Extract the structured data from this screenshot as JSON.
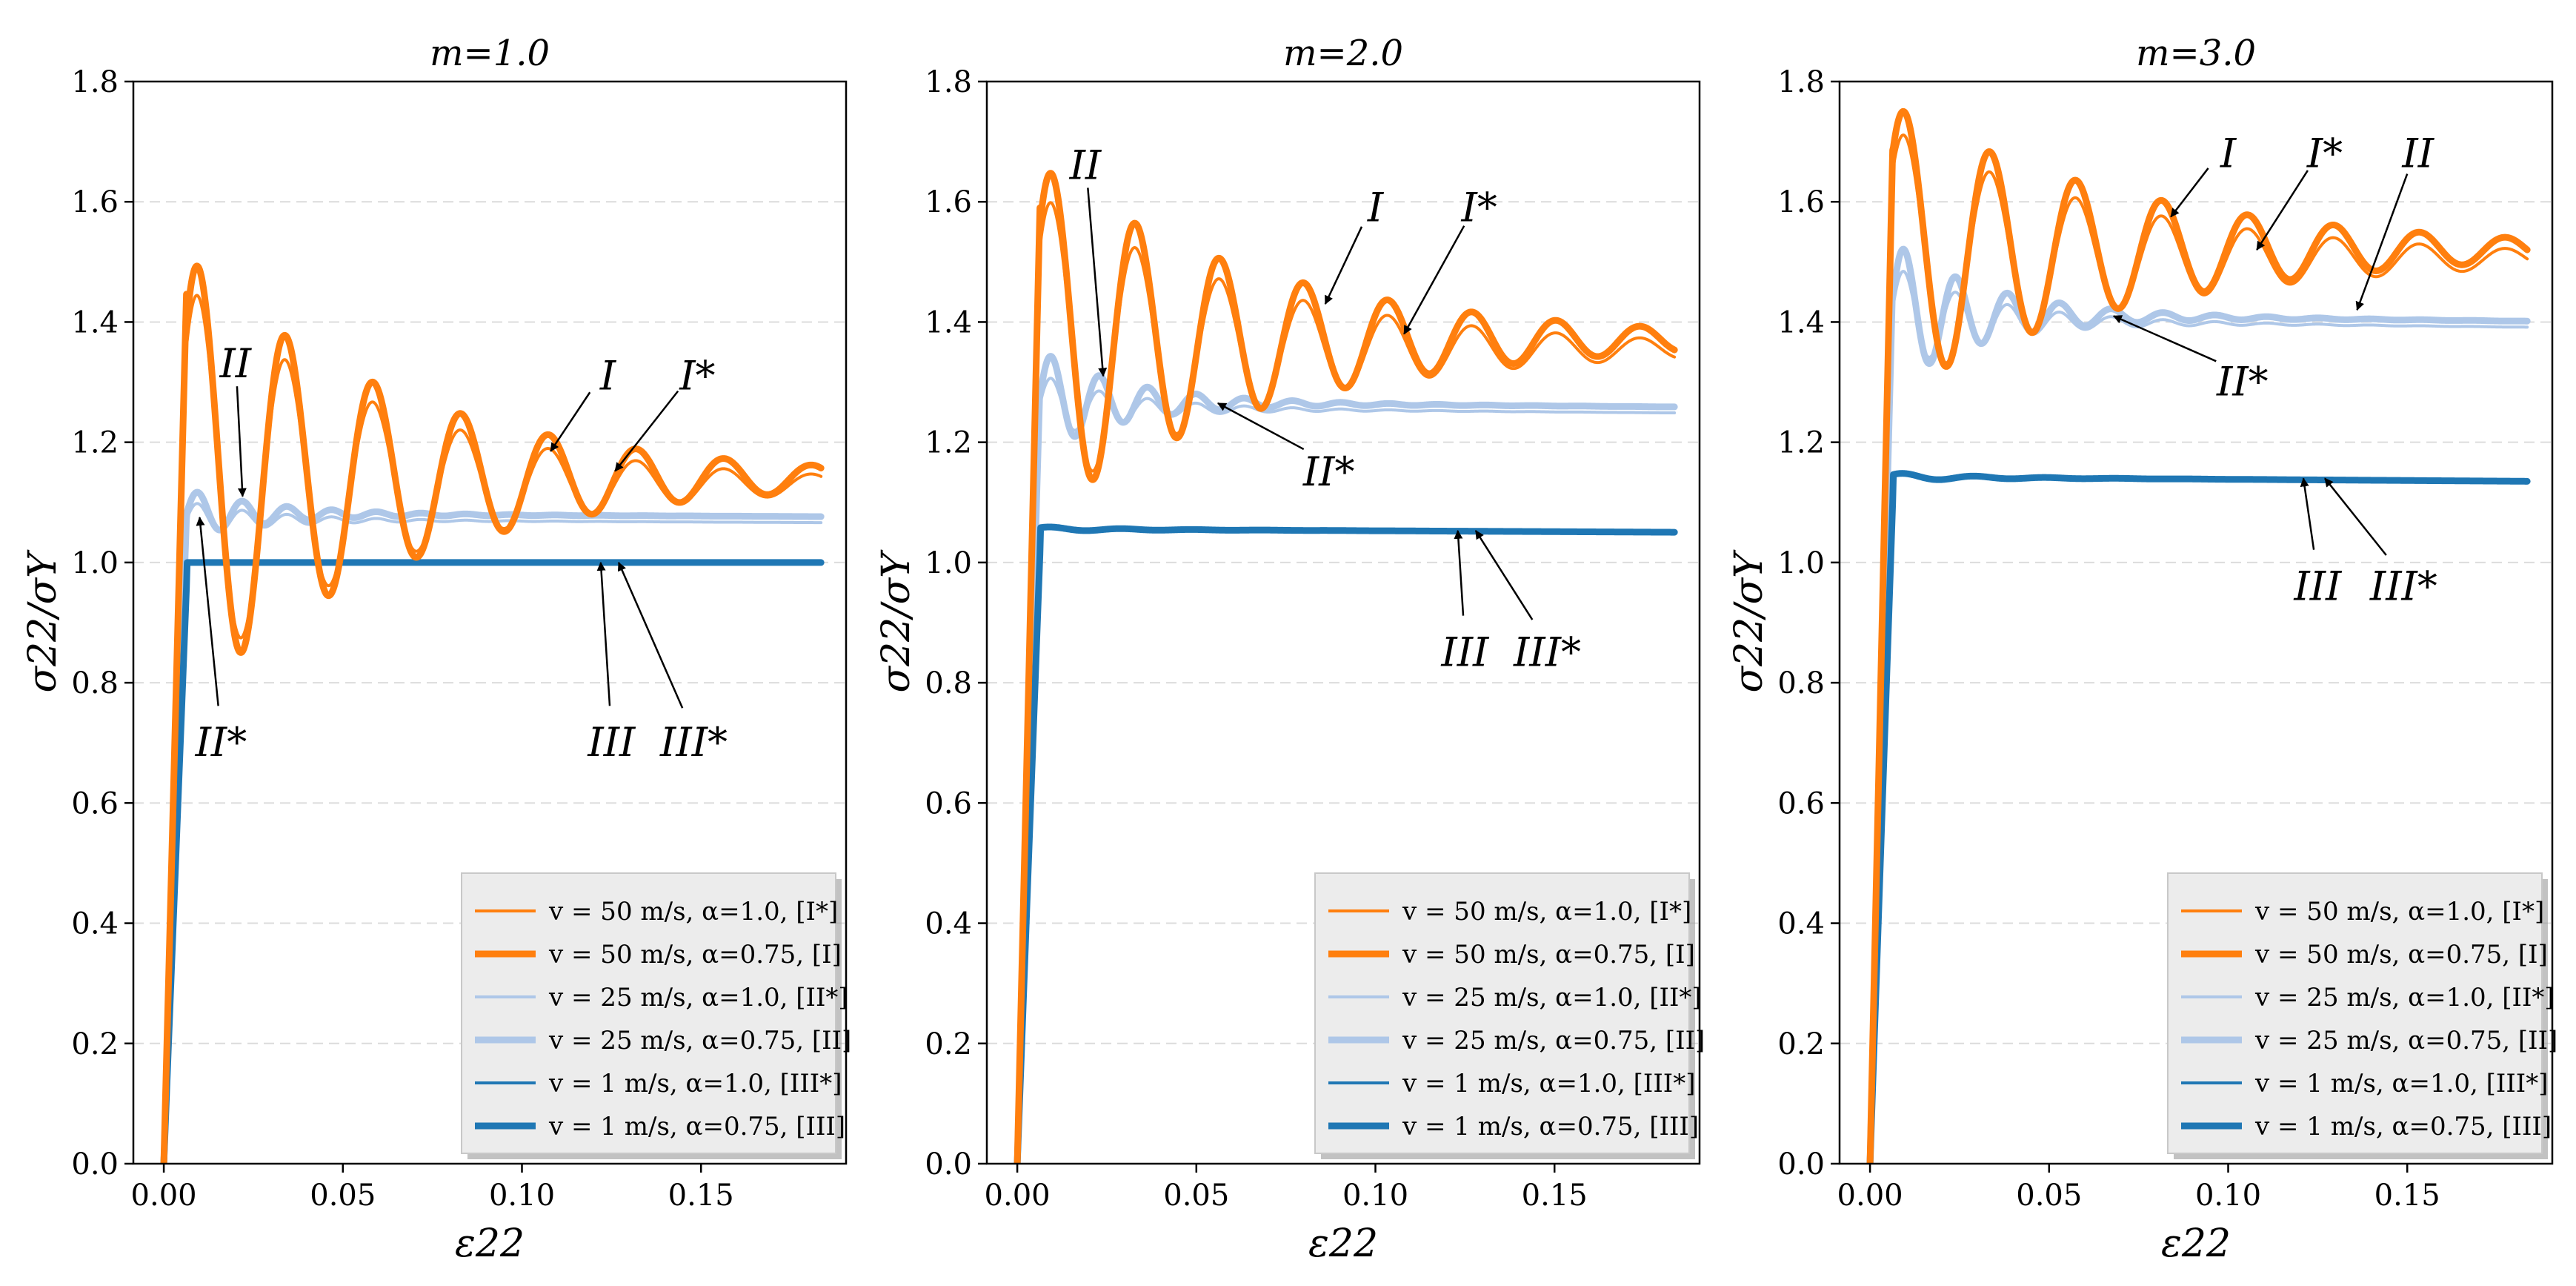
{
  "chart_data": [
    {
      "type": "line",
      "title": "m=1.0",
      "xlabel": "ε22",
      "ylabel": "σ22/σY",
      "xlim": [
        -0.0085,
        0.1905
      ],
      "ylim": [
        0.0,
        1.8
      ],
      "xticks": [
        "0.00",
        "0.05",
        "0.10",
        "0.15"
      ],
      "xtick_values": [
        0.0,
        0.05,
        0.1,
        0.15
      ],
      "yticks": [
        "0.0",
        "0.2",
        "0.4",
        "0.6",
        "0.8",
        "1.0",
        "1.2",
        "1.4",
        "1.6",
        "1.8"
      ],
      "ytick_values": [
        0.0,
        0.2,
        0.4,
        0.6,
        0.8,
        1.0,
        1.2,
        1.4,
        1.6,
        1.8
      ],
      "grid": "horizontal dashed",
      "legend_position": "bottom-right",
      "series": [
        {
          "name": "v = 50 m/s, α=1.0, [I*]",
          "color": "#ff7f0e",
          "width": 4,
          "plateau": 1.13,
          "peak": 1.46,
          "decay": 0.025,
          "period": 0.0245,
          "slope": 0.0
        },
        {
          "name": "v = 50 m/s, α=0.75, [I]",
          "color": "#ff7f0e",
          "width": 9,
          "plateau": 1.14,
          "peak": 1.51,
          "decay": 0.028,
          "period": 0.0245,
          "slope": 0.0
        },
        {
          "name": "v = 25 m/s, α=1.0, [II*]",
          "color": "#aec7e8",
          "width": 4,
          "plateau": 1.07,
          "peak": 1.1,
          "decay": 0.012,
          "period": 0.0125,
          "slope": -0.03
        },
        {
          "name": "v = 25 m/s, α=0.75, [II]",
          "color": "#aec7e8",
          "width": 9,
          "plateau": 1.08,
          "peak": 1.12,
          "decay": 0.012,
          "period": 0.0125,
          "slope": -0.03
        },
        {
          "name": "v = 1 m/s, α=1.0, [III*]",
          "color": "#1f77b4",
          "width": 4,
          "plateau": 1.0,
          "peak": 1.0,
          "decay": 0.01,
          "period": 0.02,
          "slope": 0.0
        },
        {
          "name": "v = 1 m/s, α=0.75, [III]",
          "color": "#1f77b4",
          "width": 9,
          "plateau": 1.0,
          "peak": 1.0,
          "decay": 0.01,
          "period": 0.02,
          "slope": 0.0
        }
      ],
      "annotations": [
        {
          "text": "I",
          "text_x": 0.124,
          "text_y": 1.31,
          "arrow_x": 0.108,
          "arrow_y": 1.185
        },
        {
          "text": "I*",
          "text_x": 0.149,
          "text_y": 1.31,
          "arrow_x": 0.126,
          "arrow_y": 1.152
        },
        {
          "text": "II",
          "text_x": 0.02,
          "text_y": 1.33,
          "arrow_x": 0.022,
          "arrow_y": 1.11
        },
        {
          "text": "II*",
          "text_x": 0.016,
          "text_y": 0.7,
          "arrow_x": 0.01,
          "arrow_y": 1.075
        },
        {
          "text": "III",
          "text_x": 0.125,
          "text_y": 0.7,
          "arrow_x": 0.122,
          "arrow_y": 1.0
        },
        {
          "text": "III*",
          "text_x": 0.148,
          "text_y": 0.7,
          "arrow_x": 0.127,
          "arrow_y": 1.0
        }
      ]
    },
    {
      "type": "line",
      "title": "m=2.0",
      "xlabel": "ε22",
      "ylabel": "σ22/σY",
      "xlim": [
        -0.0085,
        0.1905
      ],
      "ylim": [
        0.0,
        1.8
      ],
      "xticks": [
        "0.00",
        "0.05",
        "0.10",
        "0.15"
      ],
      "xtick_values": [
        0.0,
        0.05,
        0.1,
        0.15
      ],
      "yticks": [
        "0.0",
        "0.2",
        "0.4",
        "0.6",
        "0.8",
        "1.0",
        "1.2",
        "1.4",
        "1.6",
        "1.8"
      ],
      "ytick_values": [
        0.0,
        0.2,
        0.4,
        0.6,
        0.8,
        1.0,
        1.2,
        1.4,
        1.6,
        1.8
      ],
      "grid": "horizontal dashed",
      "legend_position": "bottom-right",
      "series": [
        {
          "name": "v = 50 m/s, α=1.0, [I*]",
          "color": "#ff7f0e",
          "width": 4,
          "plateau": 1.355,
          "peak": 1.61,
          "decay": 0.03,
          "period": 0.0235,
          "slope": 0.0
        },
        {
          "name": "v = 50 m/s, α=0.75, [I]",
          "color": "#ff7f0e",
          "width": 9,
          "plateau": 1.37,
          "peak": 1.66,
          "decay": 0.032,
          "period": 0.0235,
          "slope": 0.0
        },
        {
          "name": "v = 25 m/s, α=1.0, [II*]",
          "color": "#aec7e8",
          "width": 4,
          "plateau": 1.255,
          "peak": 1.31,
          "decay": 0.013,
          "period": 0.0135,
          "slope": -0.05
        },
        {
          "name": "v = 25 m/s, α=0.75, [II]",
          "color": "#aec7e8",
          "width": 9,
          "plateau": 1.265,
          "peak": 1.35,
          "decay": 0.013,
          "period": 0.0135,
          "slope": -0.05
        },
        {
          "name": "v = 1 m/s, α=1.0, [III*]",
          "color": "#1f77b4",
          "width": 4,
          "plateau": 1.052,
          "peak": 1.056,
          "decay": 0.01,
          "period": 0.02,
          "slope": -0.03
        },
        {
          "name": "v = 1 m/s, α=0.75, [III]",
          "color": "#1f77b4",
          "width": 9,
          "plateau": 1.054,
          "peak": 1.058,
          "decay": 0.01,
          "period": 0.02,
          "slope": -0.03
        }
      ],
      "annotations": [
        {
          "text": "II",
          "text_x": 0.019,
          "text_y": 1.66,
          "arrow_x": 0.024,
          "arrow_y": 1.31
        },
        {
          "text": "I",
          "text_x": 0.1,
          "text_y": 1.59,
          "arrow_x": 0.086,
          "arrow_y": 1.43
        },
        {
          "text": "I*",
          "text_x": 0.129,
          "text_y": 1.59,
          "arrow_x": 0.108,
          "arrow_y": 1.38
        },
        {
          "text": "II*",
          "text_x": 0.087,
          "text_y": 1.15,
          "arrow_x": 0.056,
          "arrow_y": 1.265
        },
        {
          "text": "III",
          "text_x": 0.125,
          "text_y": 0.85,
          "arrow_x": 0.123,
          "arrow_y": 1.053
        },
        {
          "text": "III*",
          "text_x": 0.148,
          "text_y": 0.85,
          "arrow_x": 0.128,
          "arrow_y": 1.053
        }
      ]
    },
    {
      "type": "line",
      "title": "m=3.0",
      "xlabel": "ε22",
      "ylabel": "σ22/σY",
      "xlim": [
        -0.0085,
        0.1905
      ],
      "ylim": [
        0.0,
        1.8
      ],
      "xticks": [
        "0.00",
        "0.05",
        "0.10",
        "0.15"
      ],
      "xtick_values": [
        0.0,
        0.05,
        0.1,
        0.15
      ],
      "yticks": [
        "0.0",
        "0.2",
        "0.4",
        "0.6",
        "0.8",
        "1.0",
        "1.2",
        "1.4",
        "1.6",
        "1.8"
      ],
      "ytick_values": [
        0.0,
        0.2,
        0.4,
        0.6,
        0.8,
        1.0,
        1.2,
        1.4,
        1.6,
        1.8
      ],
      "grid": "horizontal dashed",
      "legend_position": "bottom-right",
      "series": [
        {
          "name": "v = 50 m/s, α=1.0, [I*]",
          "color": "#ff7f0e",
          "width": 4,
          "plateau": 1.505,
          "peak": 1.72,
          "decay": 0.034,
          "period": 0.024,
          "slope": 0.0
        },
        {
          "name": "v = 50 m/s, α=0.75, [I]",
          "color": "#ff7f0e",
          "width": 9,
          "plateau": 1.52,
          "peak": 1.76,
          "decay": 0.036,
          "period": 0.024,
          "slope": 0.0
        },
        {
          "name": "v = 25 m/s, α=1.0, [II*]",
          "color": "#aec7e8",
          "width": 4,
          "plateau": 1.4,
          "peak": 1.49,
          "decay": 0.015,
          "period": 0.0145,
          "slope": -0.07
        },
        {
          "name": "v = 25 m/s, α=0.75, [II]",
          "color": "#aec7e8",
          "width": 9,
          "plateau": 1.41,
          "peak": 1.53,
          "decay": 0.015,
          "period": 0.0145,
          "slope": -0.07
        },
        {
          "name": "v = 1 m/s, α=1.0, [III*]",
          "color": "#1f77b4",
          "width": 4,
          "plateau": 1.138,
          "peak": 1.145,
          "decay": 0.01,
          "period": 0.02,
          "slope": -0.04
        },
        {
          "name": "v = 1 m/s, α=0.75, [III]",
          "color": "#1f77b4",
          "width": 9,
          "plateau": 1.14,
          "peak": 1.147,
          "decay": 0.01,
          "period": 0.02,
          "slope": -0.04
        }
      ],
      "annotations": [
        {
          "text": "I",
          "text_x": 0.1,
          "text_y": 1.68,
          "arrow_x": 0.084,
          "arrow_y": 1.575
        },
        {
          "text": "I*",
          "text_x": 0.127,
          "text_y": 1.68,
          "arrow_x": 0.108,
          "arrow_y": 1.52
        },
        {
          "text": "II",
          "text_x": 0.153,
          "text_y": 1.68,
          "arrow_x": 0.136,
          "arrow_y": 1.42
        },
        {
          "text": "II*",
          "text_x": 0.104,
          "text_y": 1.3,
          "arrow_x": 0.068,
          "arrow_y": 1.41
        },
        {
          "text": "III",
          "text_x": 0.125,
          "text_y": 0.96,
          "arrow_x": 0.121,
          "arrow_y": 1.14
        },
        {
          "text": "III*",
          "text_x": 0.149,
          "text_y": 0.96,
          "arrow_x": 0.127,
          "arrow_y": 1.14
        }
      ]
    }
  ]
}
